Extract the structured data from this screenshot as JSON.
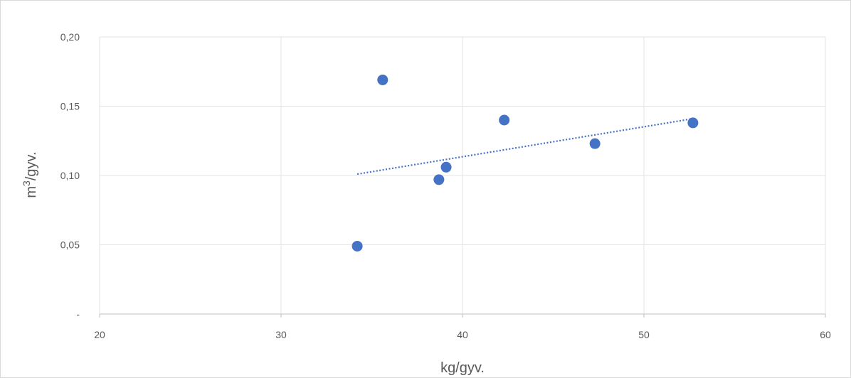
{
  "chart_data": {
    "type": "scatter",
    "xlabel": "kg/gyv.",
    "ylabel_base": "m",
    "ylabel_sup": "3",
    "ylabel_rest": "/gyv.",
    "xlim": [
      20,
      60
    ],
    "ylim": [
      0,
      0.2
    ],
    "x_ticks": [
      {
        "value": 20,
        "label": "20"
      },
      {
        "value": 30,
        "label": "30"
      },
      {
        "value": 40,
        "label": "40"
      },
      {
        "value": 50,
        "label": "50"
      },
      {
        "value": 60,
        "label": "60"
      }
    ],
    "y_ticks": [
      {
        "value": 0,
        "label": "-"
      },
      {
        "value": 0.05,
        "label": "0,05"
      },
      {
        "value": 0.1,
        "label": "0,10"
      },
      {
        "value": 0.15,
        "label": "0,15"
      },
      {
        "value": 0.2,
        "label": "0,20"
      }
    ],
    "grid": true,
    "series": [
      {
        "color": "#4472c4",
        "points": [
          {
            "x": 34.2,
            "y": 0.049
          },
          {
            "x": 35.6,
            "y": 0.169
          },
          {
            "x": 38.7,
            "y": 0.097
          },
          {
            "x": 39.1,
            "y": 0.106
          },
          {
            "x": 42.3,
            "y": 0.14
          },
          {
            "x": 47.3,
            "y": 0.123
          },
          {
            "x": 52.7,
            "y": 0.138
          }
        ],
        "trendline": {
          "type": "linear",
          "style": "dotted",
          "color": "#4472c4",
          "x_start": 34.2,
          "x_end": 52.7,
          "y_start": 0.101,
          "y_end": 0.141
        }
      }
    ]
  }
}
